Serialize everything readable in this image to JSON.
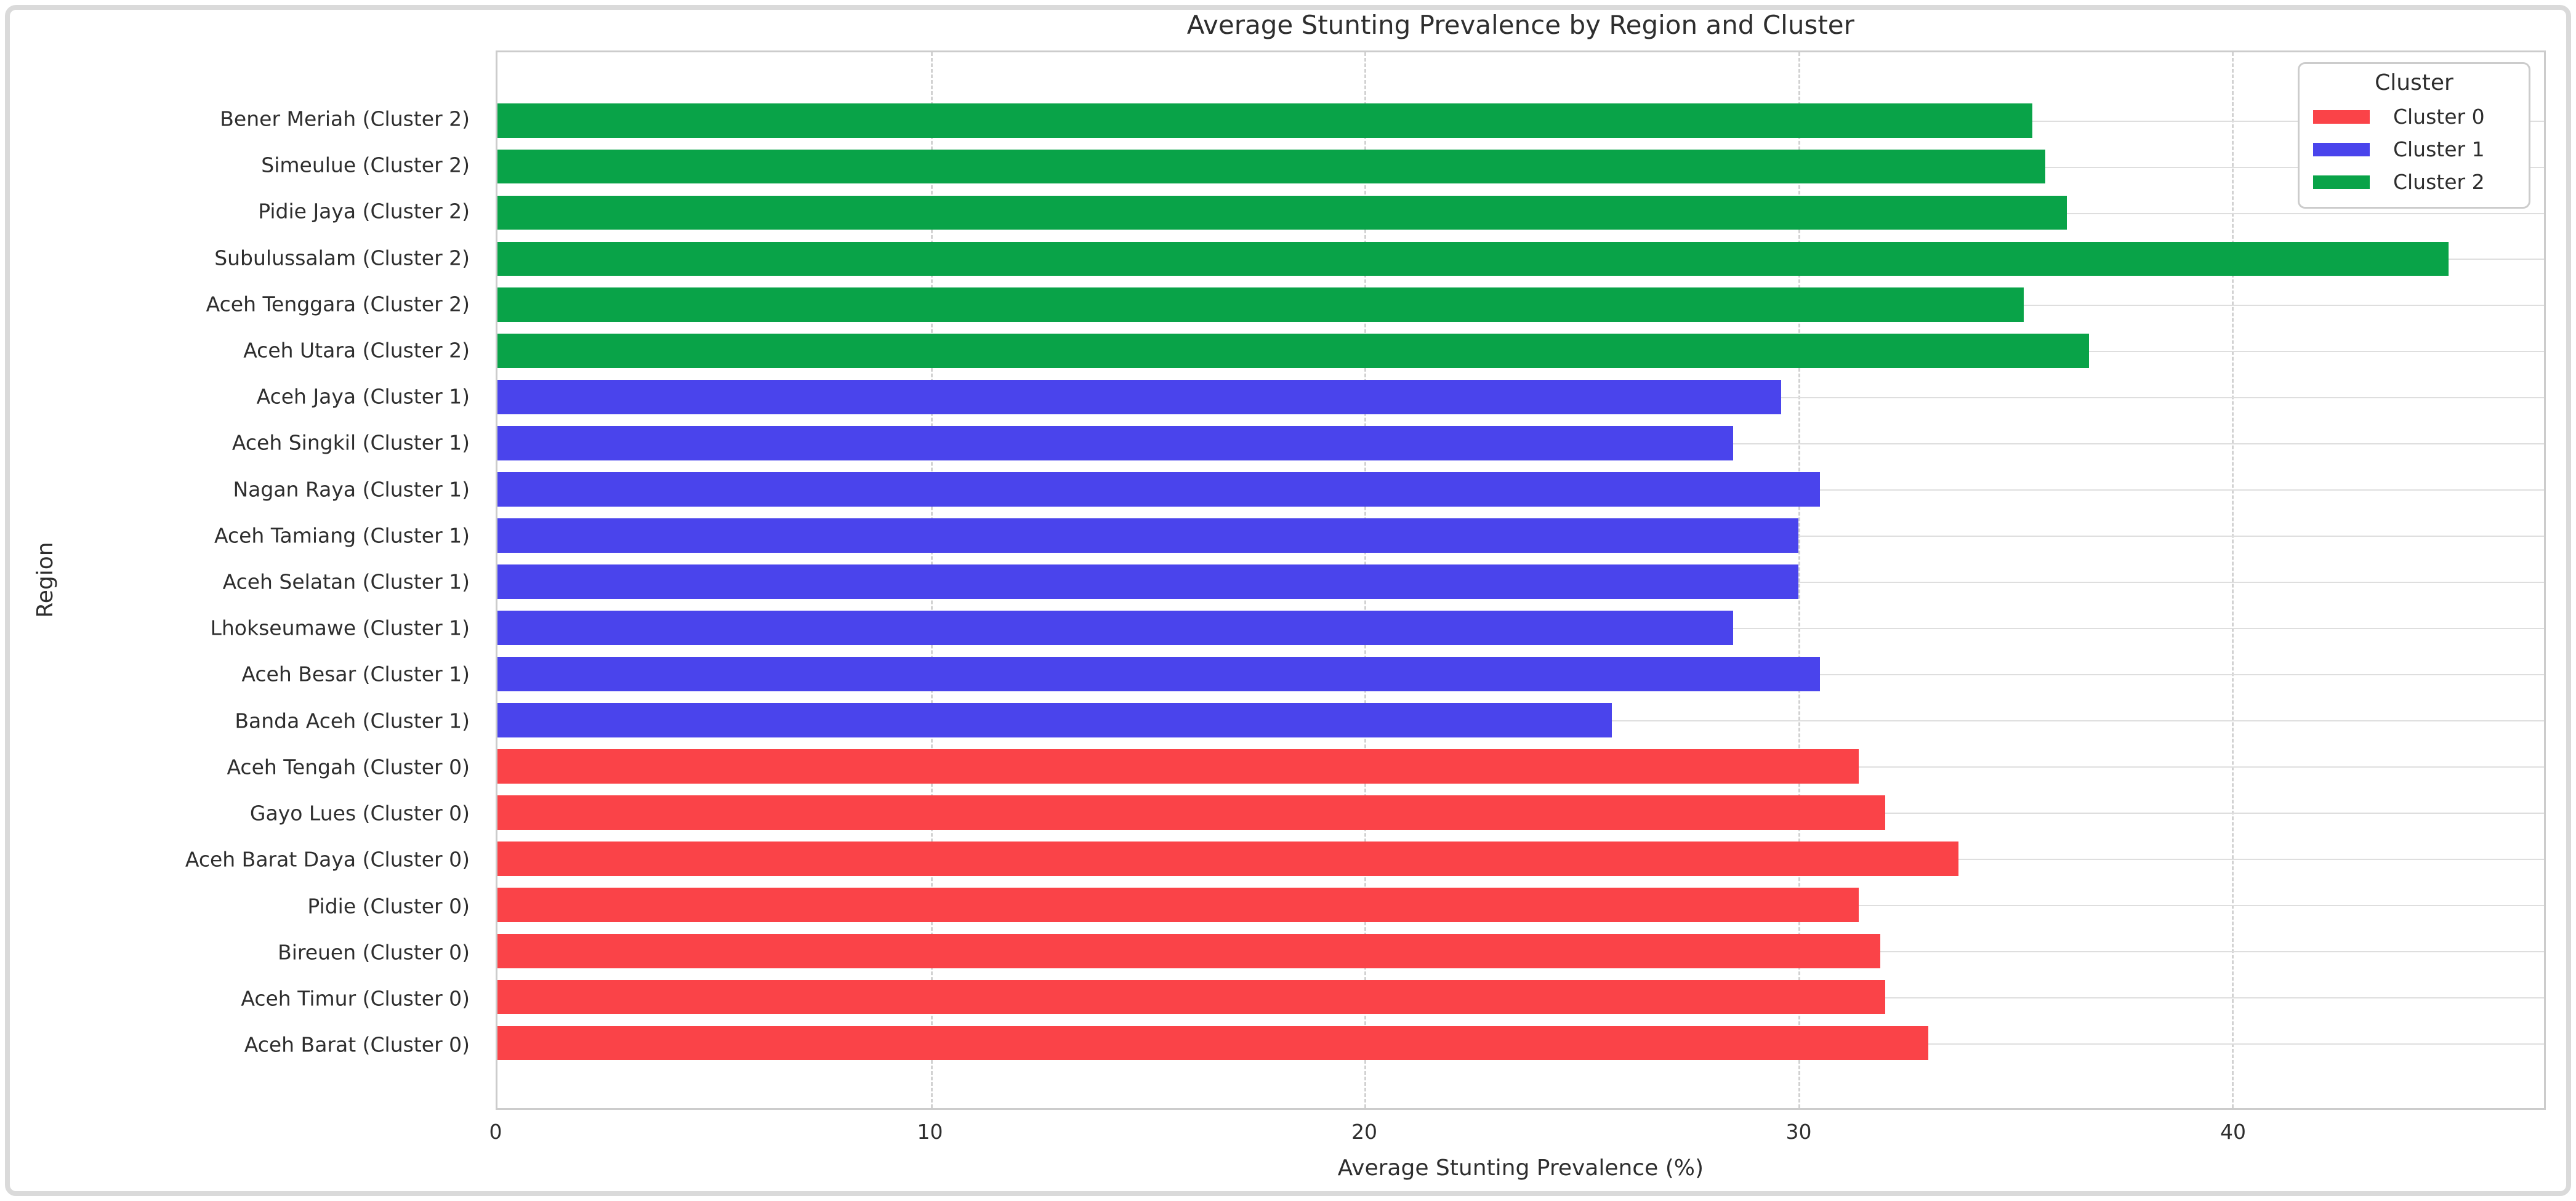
{
  "chart_data": {
    "type": "bar",
    "orientation": "horizontal",
    "title": "Average Stunting Prevalence by Region and Cluster",
    "xlabel": "Average Stunting Prevalence (%)",
    "ylabel": "Region",
    "xlim": [
      0,
      47.2
    ],
    "xticks": [
      0,
      10,
      20,
      30,
      40
    ],
    "grid": {
      "x_gridlines": "dashed",
      "y_gridlines": "solid"
    },
    "legend": {
      "title": "Cluster",
      "position": "upper right",
      "entries": [
        {
          "label": "Cluster 0",
          "color": "#fa4348"
        },
        {
          "label": "Cluster 1",
          "color": "#4a44ec"
        },
        {
          "label": "Cluster 2",
          "color": "#09a348"
        }
      ]
    },
    "cluster_colors": {
      "Cluster 0": "#fa4348",
      "Cluster 1": "#4a44ec",
      "Cluster 2": "#09a348"
    },
    "bars": [
      {
        "region": "Bener Meriah",
        "cluster": "Cluster 2",
        "label": "Bener Meriah (Cluster 2)",
        "value": 35.4,
        "color": "#09a348"
      },
      {
        "region": "Simeulue",
        "cluster": "Cluster 2",
        "label": "Simeulue (Cluster 2)",
        "value": 35.7,
        "color": "#09a348"
      },
      {
        "region": "Pidie Jaya",
        "cluster": "Cluster 2",
        "label": "Pidie Jaya (Cluster 2)",
        "value": 36.2,
        "color": "#09a348"
      },
      {
        "region": "Subulussalam",
        "cluster": "Cluster 2",
        "label": "Subulussalam (Cluster 2)",
        "value": 45.0,
        "color": "#09a348"
      },
      {
        "region": "Aceh Tenggara",
        "cluster": "Cluster 2",
        "label": "Aceh Tenggara (Cluster 2)",
        "value": 35.2,
        "color": "#09a348"
      },
      {
        "region": "Aceh Utara",
        "cluster": "Cluster 2",
        "label": "Aceh Utara (Cluster 2)",
        "value": 36.7,
        "color": "#09a348"
      },
      {
        "region": "Aceh Jaya",
        "cluster": "Cluster 1",
        "label": "Aceh Jaya (Cluster 1)",
        "value": 29.6,
        "color": "#4a44ec"
      },
      {
        "region": "Aceh Singkil",
        "cluster": "Cluster 1",
        "label": "Aceh Singkil (Cluster 1)",
        "value": 28.5,
        "color": "#4a44ec"
      },
      {
        "region": "Nagan Raya",
        "cluster": "Cluster 1",
        "label": "Nagan Raya (Cluster 1)",
        "value": 30.5,
        "color": "#4a44ec"
      },
      {
        "region": "Aceh Tamiang",
        "cluster": "Cluster 1",
        "label": "Aceh Tamiang (Cluster 1)",
        "value": 30.0,
        "color": "#4a44ec"
      },
      {
        "region": "Aceh Selatan",
        "cluster": "Cluster 1",
        "label": "Aceh Selatan (Cluster 1)",
        "value": 30.0,
        "color": "#4a44ec"
      },
      {
        "region": "Lhokseumawe",
        "cluster": "Cluster 1",
        "label": "Lhokseumawe (Cluster 1)",
        "value": 28.5,
        "color": "#4a44ec"
      },
      {
        "region": "Aceh Besar",
        "cluster": "Cluster 1",
        "label": "Aceh Besar (Cluster 1)",
        "value": 30.5,
        "color": "#4a44ec"
      },
      {
        "region": "Banda Aceh",
        "cluster": "Cluster 1",
        "label": "Banda Aceh (Cluster 1)",
        "value": 25.7,
        "color": "#4a44ec"
      },
      {
        "region": "Aceh Tengah",
        "cluster": "Cluster 0",
        "label": "Aceh Tengah (Cluster 0)",
        "value": 31.4,
        "color": "#fa4348"
      },
      {
        "region": "Gayo Lues",
        "cluster": "Cluster 0",
        "label": "Gayo Lues (Cluster 0)",
        "value": 32.0,
        "color": "#fa4348"
      },
      {
        "region": "Aceh Barat Daya",
        "cluster": "Cluster 0",
        "label": "Aceh Barat Daya (Cluster 0)",
        "value": 33.7,
        "color": "#fa4348"
      },
      {
        "region": "Pidie",
        "cluster": "Cluster 0",
        "label": "Pidie (Cluster 0)",
        "value": 31.4,
        "color": "#fa4348"
      },
      {
        "region": "Bireuen",
        "cluster": "Cluster 0",
        "label": "Bireuen (Cluster 0)",
        "value": 31.9,
        "color": "#fa4348"
      },
      {
        "region": "Aceh Timur",
        "cluster": "Cluster 0",
        "label": "Aceh Timur (Cluster 0)",
        "value": 32.0,
        "color": "#fa4348"
      },
      {
        "region": "Aceh Barat",
        "cluster": "Cluster 0",
        "label": "Aceh Barat (Cluster 0)",
        "value": 33.0,
        "color": "#fa4348"
      }
    ]
  }
}
